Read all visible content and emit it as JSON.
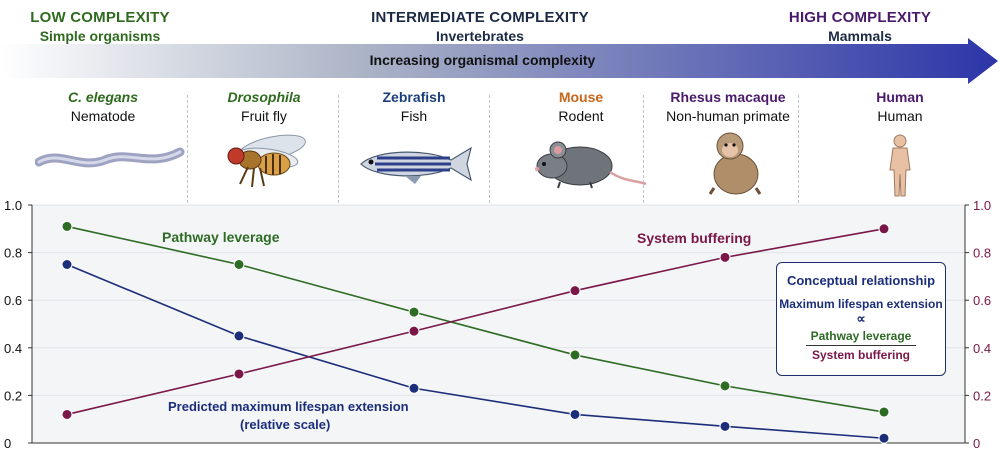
{
  "header": {
    "low": {
      "level": "LOW COMPLEXITY",
      "desc": "Simple organisms",
      "color": "#2f6b1f"
    },
    "mid": {
      "level": "INTERMEDIATE COMPLEXITY",
      "desc": "Invertebrates",
      "color": "#1c2a45"
    },
    "high": {
      "level": "HIGH COMPLEXITY",
      "desc": "Mammals",
      "color": "#4a1a6b"
    },
    "arrow_label": "Increasing organismal complexity"
  },
  "organisms": [
    {
      "name": "C. elegans",
      "common": "Nematode",
      "color": "#2f6b1f",
      "italic": true,
      "icon": "worm-icon"
    },
    {
      "name": "Drosophila",
      "common": "Fruit fly",
      "color": "#2f6b1f",
      "italic": true,
      "icon": "fly-icon"
    },
    {
      "name": "Zebrafish",
      "common": "Fish",
      "color": "#1c3f7a",
      "italic": false,
      "icon": "fish-icon"
    },
    {
      "name": "Mouse",
      "common": "Rodent",
      "color": "#c8661a",
      "italic": false,
      "icon": "mouse-icon"
    },
    {
      "name": "Rhesus macaque",
      "common": "Non-human primate",
      "color": "#4a1a6b",
      "italic": false,
      "icon": "monkey-icon"
    },
    {
      "name": "Human",
      "common": "Human",
      "color": "#4a1a6b",
      "italic": false,
      "icon": "human-icon"
    }
  ],
  "chart_data": {
    "type": "line",
    "categories": [
      "C. elegans",
      "Drosophila",
      "Zebrafish",
      "Mouse",
      "Rhesus macaque",
      "Human"
    ],
    "ylim": [
      0,
      1.0
    ],
    "y2lim": [
      0,
      1.0
    ],
    "yticks": [
      "0",
      "0.2",
      "0.4",
      "0.6",
      "0.8",
      "1.0"
    ],
    "y2ticks": [
      "0",
      "0.2",
      "0.4",
      "0.6",
      "0.8",
      "1.0"
    ],
    "series": [
      {
        "name": "Pathway leverage",
        "values": [
          0.91,
          0.75,
          0.55,
          0.37,
          0.24,
          0.13
        ],
        "color": "#2e6b25",
        "axis": "left"
      },
      {
        "name": "Predicted maximum lifespan extension",
        "name_line2": "(relative scale)",
        "values": [
          0.75,
          0.45,
          0.23,
          0.12,
          0.07,
          0.02
        ],
        "color": "#1b2e7a",
        "axis": "left"
      },
      {
        "name": "System buffering",
        "values": [
          0.12,
          0.29,
          0.47,
          0.64,
          0.78,
          0.9
        ],
        "color": "#7a1748",
        "axis": "right"
      }
    ],
    "legend_box": {
      "title": "Conceptual relationship",
      "line1": "Maximum lifespan extension",
      "symbol": "∝",
      "numerator": "Pathway leverage",
      "denominator": "System buffering"
    }
  }
}
